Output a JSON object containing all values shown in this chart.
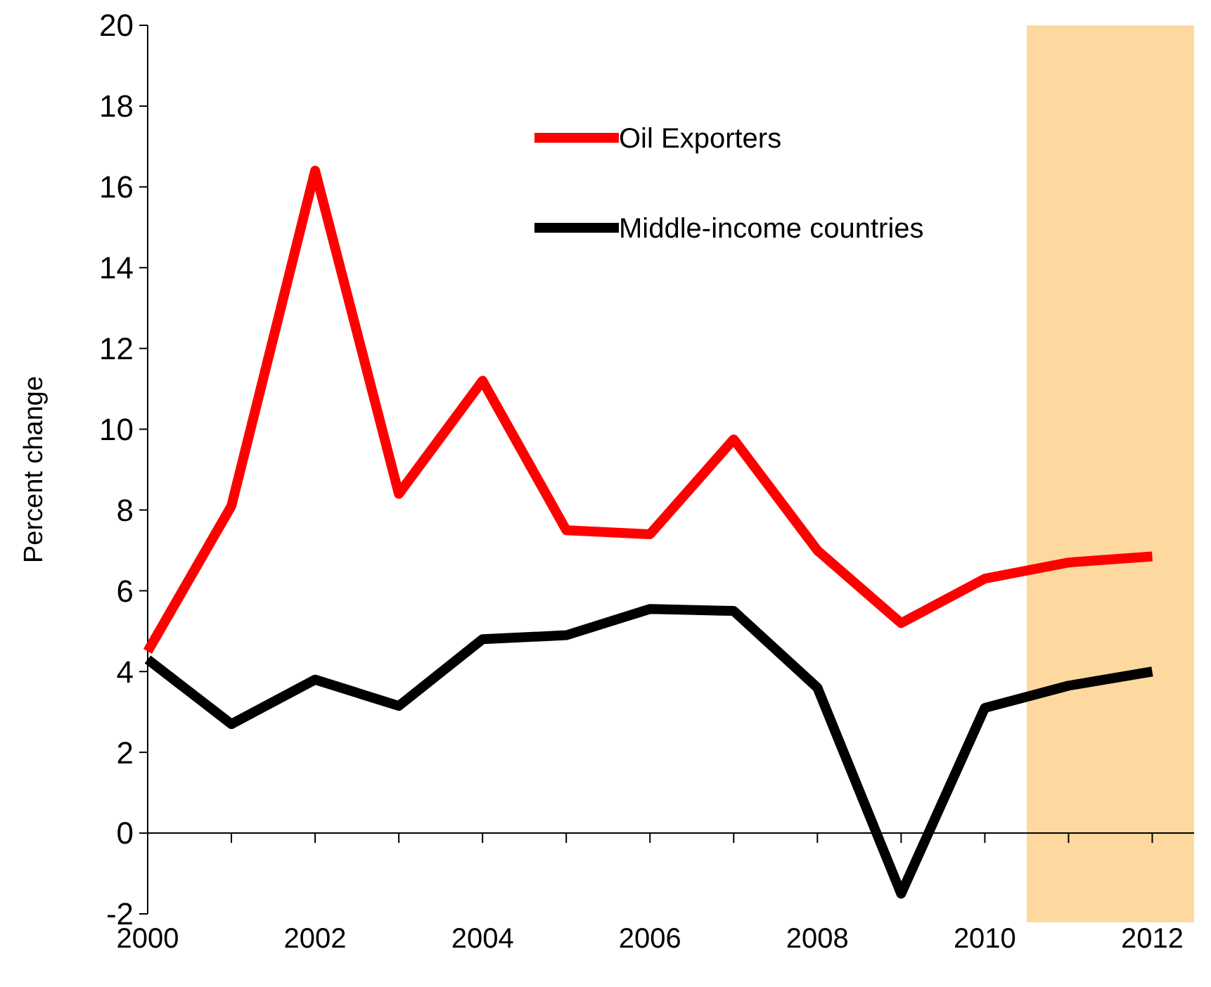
{
  "chart_data": {
    "type": "line",
    "ylabel": "Percent change",
    "x": [
      2000,
      2001,
      2002,
      2003,
      2004,
      2005,
      2006,
      2007,
      2008,
      2009,
      2010,
      2011,
      2012
    ],
    "series": [
      {
        "name": "Oil Exporters",
        "color": "#ff0000",
        "values": [
          4.5,
          8.1,
          16.4,
          8.4,
          11.2,
          7.5,
          7.4,
          9.75,
          7.0,
          5.2,
          6.3,
          6.7,
          6.85
        ]
      },
      {
        "name": "Middle-income countries",
        "color": "#000000",
        "values": [
          4.3,
          2.7,
          3.8,
          3.15,
          4.8,
          4.9,
          5.55,
          5.5,
          3.6,
          -1.5,
          3.1,
          3.65,
          4.0
        ]
      }
    ],
    "xlim": [
      2000,
      2012.5
    ],
    "xticks": [
      2000,
      {
        "value": 2001,
        "label": null
      },
      2002,
      {
        "value": 2003,
        "label": null
      },
      2004,
      {
        "value": 2005,
        "label": null
      },
      2006,
      {
        "value": 2007,
        "label": null
      },
      2008,
      {
        "value": 2009,
        "label": null
      },
      2010,
      {
        "value": 2011,
        "label": null
      },
      2012
    ],
    "ylim": [
      -2,
      20
    ],
    "yticks": [
      -2,
      0,
      2,
      4,
      6,
      8,
      10,
      12,
      14,
      16,
      18,
      20
    ],
    "bands": [
      {
        "axis": "x",
        "from": 2010.5,
        "to": 2012.5,
        "color": "#fdd9a0"
      }
    ],
    "ref_lines": [
      {
        "axis": "y",
        "value": 0,
        "color": "#000000"
      }
    ],
    "legend": "top",
    "marker": "none",
    "line_style": "solid"
  }
}
